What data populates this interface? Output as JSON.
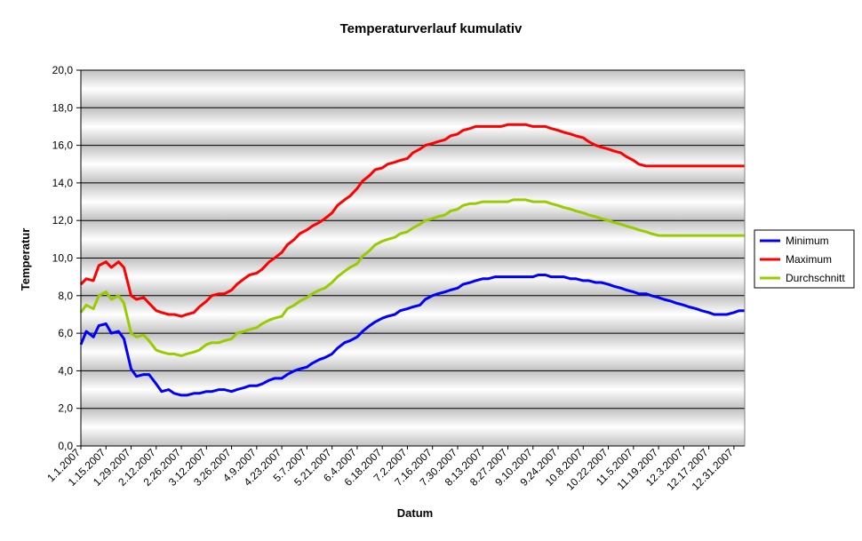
{
  "chart_data": {
    "type": "line",
    "title": "Temperaturverlauf kumulativ",
    "xlabel": "Datum",
    "ylabel": "Temperatur",
    "ylim": [
      0,
      20
    ],
    "y_ticks": [
      "0,0",
      "2,0",
      "4,0",
      "6,0",
      "8,0",
      "10,0",
      "12,0",
      "14,0",
      "16,0",
      "18,0",
      "20,0"
    ],
    "x_ticks": [
      "1.1.2007",
      "1.15.2007",
      "1.29.2007",
      "2.12.2007",
      "2.26.2007",
      "3.12.2007",
      "3.26.2007",
      "4.9.2007",
      "4.23.2007",
      "5.7.2007",
      "5.21.2007",
      "6.4.2007",
      "6.18.2007",
      "7.2.2007",
      "7.16.2007",
      "7.30.2007",
      "8.13.2007",
      "8.27.2007",
      "9.10.2007",
      "9.24.2007",
      "10.8.2007",
      "10.22.2007",
      "11.5.2007",
      "11.19.2007",
      "12.3.2007",
      "12.17.2007",
      "12.31.2007"
    ],
    "x_range": [
      "1.1.2007",
      "1.6.2008"
    ],
    "grid": "horizontal",
    "legend_position": "right",
    "x": [
      "1.1.2007",
      "1.4.2007",
      "1.8.2007",
      "1.11.2007",
      "1.15.2007",
      "1.18.2007",
      "1.22.2007",
      "1.25.2007",
      "1.29.2007",
      "2.1.2007",
      "2.5.2007",
      "2.8.2007",
      "2.12.2007",
      "2.15.2007",
      "2.19.2007",
      "2.22.2007",
      "2.26.2007",
      "3.1.2007",
      "3.5.2007",
      "3.8.2007",
      "3.12.2007",
      "3.15.2007",
      "3.19.2007",
      "3.22.2007",
      "3.26.2007",
      "3.29.2007",
      "4.2.2007",
      "4.5.2007",
      "4.9.2007",
      "4.12.2007",
      "4.16.2007",
      "4.19.2007",
      "4.23.2007",
      "4.26.2007",
      "4.30.2007",
      "5.3.2007",
      "5.7.2007",
      "5.10.2007",
      "5.14.2007",
      "5.17.2007",
      "5.21.2007",
      "5.24.2007",
      "5.28.2007",
      "5.31.2007",
      "6.4.2007",
      "6.7.2007",
      "6.11.2007",
      "6.14.2007",
      "6.18.2007",
      "6.21.2007",
      "6.25.2007",
      "6.28.2007",
      "7.2.2007",
      "7.5.2007",
      "7.9.2007",
      "7.12.2007",
      "7.16.2007",
      "7.19.2007",
      "7.23.2007",
      "7.26.2007",
      "7.30.2007",
      "8.2.2007",
      "8.6.2007",
      "8.9.2007",
      "8.13.2007",
      "8.16.2007",
      "8.20.2007",
      "8.23.2007",
      "8.27.2007",
      "8.30.2007",
      "9.3.2007",
      "9.6.2007",
      "9.10.2007",
      "9.13.2007",
      "9.17.2007",
      "9.20.2007",
      "9.24.2007",
      "9.27.2007",
      "10.1.2007",
      "10.4.2007",
      "10.8.2007",
      "10.11.2007",
      "10.15.2007",
      "10.18.2007",
      "10.22.2007",
      "10.25.2007",
      "10.29.2007",
      "11.1.2007",
      "11.5.2007",
      "11.8.2007",
      "11.12.2007",
      "11.15.2007",
      "11.19.2007",
      "11.22.2007",
      "11.26.2007",
      "11.29.2007",
      "12.3.2007",
      "12.6.2007",
      "12.10.2007",
      "12.13.2007",
      "12.17.2007",
      "12.20.2007",
      "12.24.2007",
      "12.27.2007",
      "12.31.2007",
      "1.3.2008",
      "1.6.2008"
    ],
    "series": [
      {
        "name": "Minimum",
        "color": "#0000ff",
        "values": [
          5.4,
          6.1,
          5.8,
          6.4,
          6.5,
          6.0,
          6.1,
          5.7,
          4.1,
          3.7,
          3.8,
          3.8,
          3.3,
          2.9,
          3.0,
          2.8,
          2.7,
          2.7,
          2.8,
          2.8,
          2.9,
          2.9,
          3.0,
          3.0,
          2.9,
          3.0,
          3.1,
          3.2,
          3.2,
          3.3,
          3.5,
          3.6,
          3.6,
          3.8,
          4.0,
          4.1,
          4.2,
          4.4,
          4.6,
          4.7,
          4.9,
          5.2,
          5.5,
          5.6,
          5.8,
          6.1,
          6.4,
          6.6,
          6.8,
          6.9,
          7.0,
          7.2,
          7.3,
          7.4,
          7.5,
          7.8,
          8.0,
          8.1,
          8.2,
          8.3,
          8.4,
          8.6,
          8.7,
          8.8,
          8.9,
          8.9,
          9.0,
          9.0,
          9.0,
          9.0,
          9.0,
          9.0,
          9.0,
          9.1,
          9.1,
          9.0,
          9.0,
          9.0,
          8.9,
          8.9,
          8.8,
          8.8,
          8.7,
          8.7,
          8.6,
          8.5,
          8.4,
          8.3,
          8.2,
          8.1,
          8.1,
          8.0,
          7.9,
          7.8,
          7.7,
          7.6,
          7.5,
          7.4,
          7.3,
          7.2,
          7.1,
          7.0,
          7.0,
          7.0,
          7.1,
          7.2,
          7.2
        ]
      },
      {
        "name": "Maximum",
        "color": "#ff0000",
        "values": [
          8.6,
          8.9,
          8.8,
          9.6,
          9.8,
          9.5,
          9.8,
          9.5,
          8.0,
          7.8,
          7.9,
          7.6,
          7.2,
          7.1,
          7.0,
          7.0,
          6.9,
          7.0,
          7.1,
          7.4,
          7.7,
          8.0,
          8.1,
          8.1,
          8.3,
          8.6,
          8.9,
          9.1,
          9.2,
          9.4,
          9.8,
          10.0,
          10.3,
          10.7,
          11.0,
          11.3,
          11.5,
          11.7,
          11.9,
          12.1,
          12.4,
          12.8,
          13.1,
          13.3,
          13.7,
          14.1,
          14.4,
          14.7,
          14.8,
          15.0,
          15.1,
          15.2,
          15.3,
          15.6,
          15.8,
          16.0,
          16.1,
          16.2,
          16.3,
          16.5,
          16.6,
          16.8,
          16.9,
          17.0,
          17.0,
          17.0,
          17.0,
          17.0,
          17.1,
          17.1,
          17.1,
          17.1,
          17.0,
          17.0,
          17.0,
          16.9,
          16.8,
          16.7,
          16.6,
          16.5,
          16.4,
          16.2,
          16.0,
          15.9,
          15.8,
          15.7,
          15.6,
          15.4,
          15.2,
          15.0,
          14.9,
          14.9,
          14.9,
          14.9,
          14.9,
          14.9,
          14.9,
          14.9,
          14.9,
          14.9,
          14.9,
          14.9,
          14.9,
          14.9,
          14.9,
          14.9,
          14.9
        ]
      },
      {
        "name": "Durchschnitt",
        "color": "#99cc00",
        "values": [
          7.1,
          7.5,
          7.3,
          8.0,
          8.2,
          7.8,
          8.0,
          7.6,
          6.0,
          5.8,
          5.9,
          5.6,
          5.1,
          5.0,
          4.9,
          4.9,
          4.8,
          4.9,
          5.0,
          5.1,
          5.4,
          5.5,
          5.5,
          5.6,
          5.7,
          6.0,
          6.1,
          6.2,
          6.3,
          6.5,
          6.7,
          6.8,
          6.9,
          7.3,
          7.5,
          7.7,
          7.9,
          8.1,
          8.3,
          8.4,
          8.7,
          9.0,
          9.3,
          9.5,
          9.7,
          10.1,
          10.4,
          10.7,
          10.9,
          11.0,
          11.1,
          11.3,
          11.4,
          11.6,
          11.8,
          12.0,
          12.1,
          12.2,
          12.3,
          12.5,
          12.6,
          12.8,
          12.9,
          12.9,
          13.0,
          13.0,
          13.0,
          13.0,
          13.0,
          13.1,
          13.1,
          13.1,
          13.0,
          13.0,
          13.0,
          12.9,
          12.8,
          12.7,
          12.6,
          12.5,
          12.4,
          12.3,
          12.2,
          12.1,
          12.0,
          11.9,
          11.8,
          11.7,
          11.6,
          11.5,
          11.4,
          11.3,
          11.2,
          11.2,
          11.2,
          11.2,
          11.2,
          11.2,
          11.2,
          11.2,
          11.2,
          11.2,
          11.2,
          11.2,
          11.2,
          11.2,
          11.2
        ]
      }
    ]
  }
}
